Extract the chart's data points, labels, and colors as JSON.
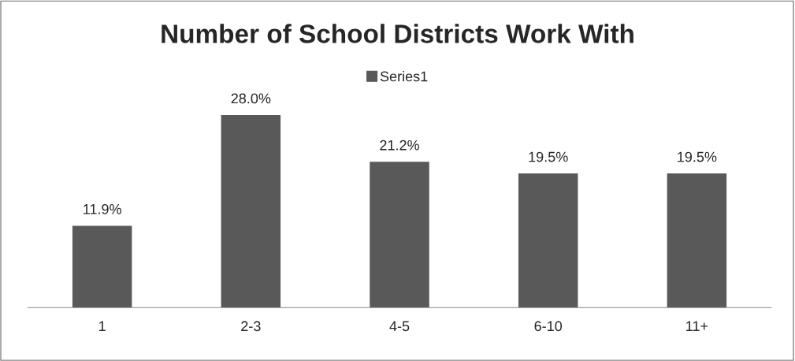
{
  "chart_data": {
    "type": "bar",
    "title": "Number of School Districts Work With",
    "categories": [
      "1",
      "2-3",
      "4-5",
      "6-10",
      "11+"
    ],
    "series": [
      {
        "name": "Series1",
        "color": "#595959",
        "values": [
          11.9,
          28.0,
          21.2,
          19.5,
          19.5
        ],
        "value_labels": [
          "11.9%",
          "28.0%",
          "21.2%",
          "19.5%",
          "19.5%"
        ]
      }
    ],
    "legend": "top",
    "grid": false
  }
}
